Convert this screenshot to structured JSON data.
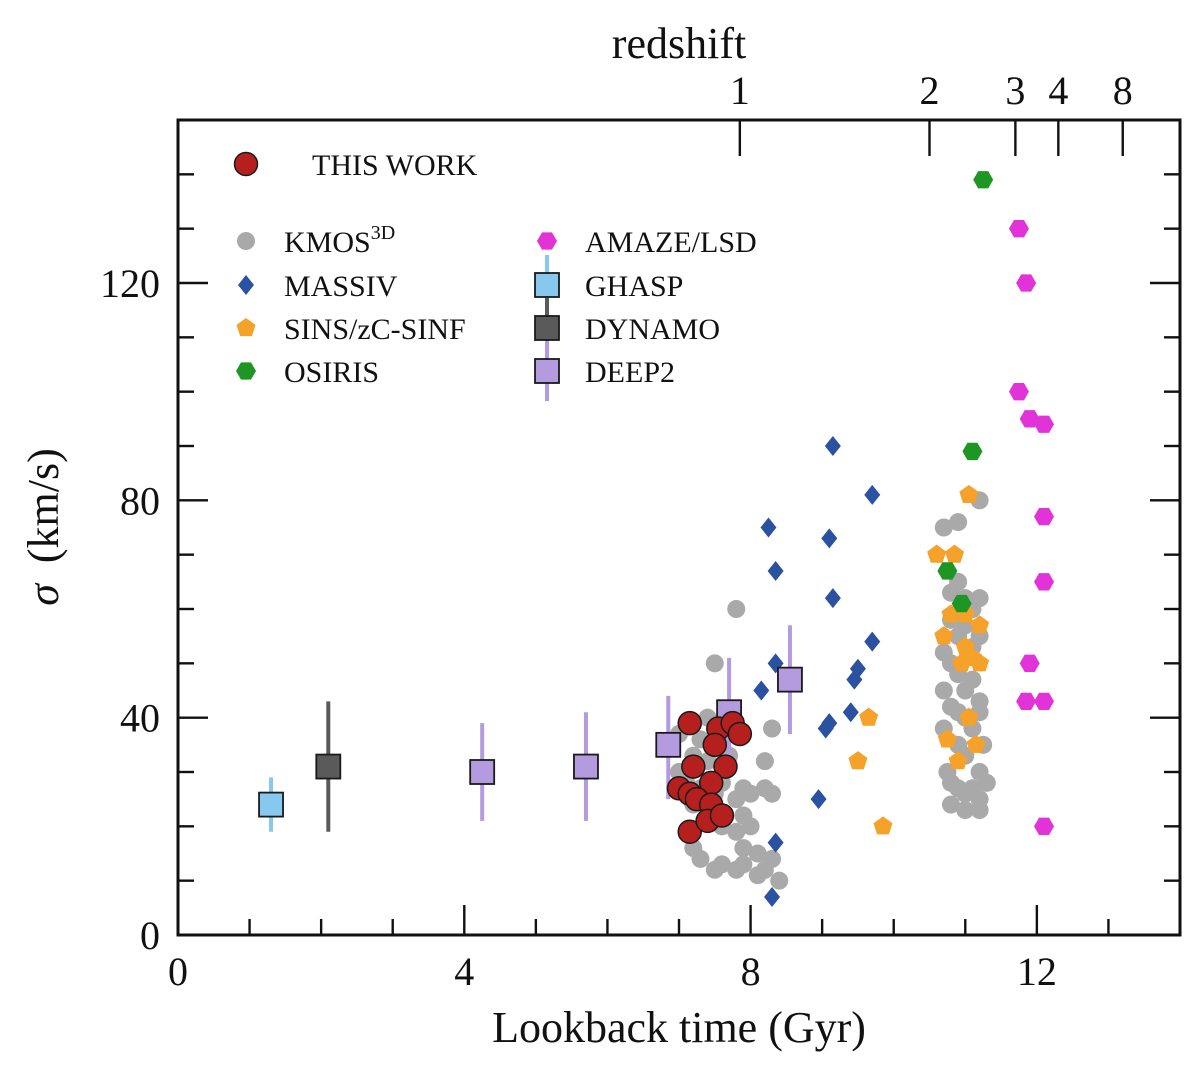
{
  "chart_data": {
    "type": "scatter",
    "xlabel": "Lookback time (Gyr)",
    "ylabel_symbol": "σ",
    "ylabel_units": "(km/s)",
    "top_axis_label": "redshift",
    "xlim": [
      0,
      14
    ],
    "ylim": [
      0,
      150
    ],
    "x_ticks": [
      0,
      4,
      8,
      12
    ],
    "x_tick_labels": [
      "0",
      "4",
      "8",
      "12"
    ],
    "x_minor_ticks": [
      1,
      2,
      3,
      5,
      6,
      7,
      9,
      10,
      11,
      13
    ],
    "y_ticks": [
      0,
      40,
      80,
      120
    ],
    "y_tick_labels": [
      "0",
      "40",
      "80",
      "120"
    ],
    "y_minor_ticks": [
      10,
      20,
      30,
      50,
      60,
      70,
      90,
      100,
      110,
      130,
      140
    ],
    "top_ticks": [
      {
        "z": "1",
        "t": 7.85
      },
      {
        "z": "2",
        "t": 10.5
      },
      {
        "z": "3",
        "t": 11.7
      },
      {
        "z": "4",
        "t": 12.3
      },
      {
        "z": "8",
        "t": 13.2
      }
    ],
    "series": [
      {
        "name": "KMOS",
        "name_sup": "3D",
        "color": "#a9a9a9",
        "marker": "circle",
        "points": [
          [
            7.0,
            37
          ],
          [
            7.2,
            33
          ],
          [
            7.3,
            36
          ],
          [
            7.4,
            40
          ],
          [
            7.5,
            38
          ],
          [
            7.6,
            35
          ],
          [
            7.7,
            33
          ],
          [
            7.1,
            28
          ],
          [
            7.3,
            27
          ],
          [
            7.5,
            26
          ],
          [
            7.6,
            28
          ],
          [
            7.8,
            25
          ],
          [
            7.9,
            27
          ],
          [
            8.0,
            26
          ],
          [
            8.2,
            27
          ],
          [
            8.3,
            26
          ],
          [
            7.4,
            22
          ],
          [
            7.6,
            20
          ],
          [
            7.8,
            19
          ],
          [
            8.0,
            20
          ],
          [
            7.2,
            16
          ],
          [
            7.3,
            14
          ],
          [
            7.5,
            12
          ],
          [
            7.6,
            13
          ],
          [
            7.8,
            12
          ],
          [
            7.9,
            13
          ],
          [
            8.1,
            11
          ],
          [
            8.2,
            12
          ],
          [
            8.4,
            10
          ],
          [
            7.9,
            16
          ],
          [
            8.1,
            15
          ],
          [
            8.3,
            14
          ],
          [
            7.0,
            30
          ],
          [
            7.2,
            24
          ],
          [
            7.4,
            32
          ],
          [
            7.9,
            22
          ],
          [
            8.2,
            32
          ],
          [
            8.3,
            38
          ],
          [
            7.5,
            50
          ],
          [
            7.8,
            60
          ],
          [
            10.7,
            75
          ],
          [
            10.9,
            76
          ],
          [
            11.2,
            80
          ],
          [
            10.8,
            63
          ],
          [
            10.9,
            65
          ],
          [
            11.0,
            62
          ],
          [
            11.1,
            60
          ],
          [
            11.2,
            62
          ],
          [
            10.8,
            58
          ],
          [
            10.9,
            55
          ],
          [
            11.0,
            57
          ],
          [
            11.1,
            53
          ],
          [
            11.2,
            55
          ],
          [
            10.8,
            50
          ],
          [
            10.9,
            48
          ],
          [
            11.0,
            45
          ],
          [
            11.1,
            47
          ],
          [
            11.2,
            43
          ],
          [
            10.8,
            42
          ],
          [
            10.9,
            41
          ],
          [
            11.0,
            40
          ],
          [
            11.1,
            38
          ],
          [
            11.2,
            41
          ],
          [
            10.7,
            38
          ],
          [
            10.9,
            35
          ],
          [
            11.0,
            33
          ],
          [
            11.2,
            30
          ],
          [
            10.8,
            28
          ],
          [
            10.9,
            27
          ],
          [
            11.0,
            26
          ],
          [
            11.1,
            27
          ],
          [
            11.2,
            25
          ],
          [
            10.8,
            24
          ],
          [
            11.0,
            23
          ],
          [
            11.2,
            23
          ],
          [
            11.3,
            28
          ],
          [
            10.7,
            45
          ],
          [
            10.7,
            52
          ],
          [
            10.75,
            30
          ],
          [
            11.25,
            35
          ]
        ]
      },
      {
        "name": "MASSIV",
        "color": "#2b52a0",
        "marker": "diamond",
        "points": [
          [
            8.25,
            75
          ],
          [
            8.35,
            67
          ],
          [
            9.15,
            90
          ],
          [
            9.1,
            73
          ],
          [
            9.15,
            62
          ],
          [
            9.7,
            81
          ],
          [
            9.7,
            54
          ],
          [
            9.5,
            49
          ],
          [
            9.45,
            47
          ],
          [
            8.35,
            50
          ],
          [
            8.15,
            45
          ],
          [
            9.1,
            39
          ],
          [
            9.05,
            38
          ],
          [
            9.4,
            41
          ],
          [
            8.95,
            25
          ],
          [
            8.35,
            17
          ],
          [
            8.3,
            7
          ]
        ]
      },
      {
        "name": "SINS/zC-SINF",
        "color": "#f5a12a",
        "marker": "pentagon",
        "points": [
          [
            11.05,
            81
          ],
          [
            10.6,
            70
          ],
          [
            10.85,
            70
          ],
          [
            10.8,
            59
          ],
          [
            11.0,
            59
          ],
          [
            11.2,
            57
          ],
          [
            10.7,
            55
          ],
          [
            11.0,
            53
          ],
          [
            11.1,
            51
          ],
          [
            10.95,
            50
          ],
          [
            11.2,
            50
          ],
          [
            9.65,
            40
          ],
          [
            11.05,
            40
          ],
          [
            10.75,
            36
          ],
          [
            11.15,
            35
          ],
          [
            9.5,
            32
          ],
          [
            10.9,
            32
          ],
          [
            9.85,
            20
          ]
        ]
      },
      {
        "name": "OSIRIS",
        "color": "#1e9623",
        "marker": "hexagon",
        "points": [
          [
            11.25,
            139
          ],
          [
            11.1,
            89
          ],
          [
            10.75,
            67
          ],
          [
            10.95,
            61
          ]
        ]
      },
      {
        "name": "AMAZE/LSD",
        "color": "#e233d8",
        "marker": "hexagon",
        "points": [
          [
            11.75,
            130
          ],
          [
            11.85,
            120
          ],
          [
            11.75,
            100
          ],
          [
            11.9,
            95
          ],
          [
            12.1,
            94
          ],
          [
            12.1,
            77
          ],
          [
            12.1,
            65
          ],
          [
            11.9,
            50
          ],
          [
            11.85,
            43
          ],
          [
            12.1,
            43
          ],
          [
            12.1,
            20
          ]
        ]
      },
      {
        "name": "GHASP",
        "color": "#87c8ef",
        "marker": "square",
        "errbar": true,
        "points": [
          [
            1.3,
            24,
            29,
            19
          ]
        ]
      },
      {
        "name": "DYNAMO",
        "color": "#5a5a5a",
        "marker": "square",
        "errbar": true,
        "points": [
          [
            2.1,
            31,
            43,
            19
          ]
        ]
      },
      {
        "name": "DEEP2",
        "color": "#b49ade",
        "marker": "square",
        "errbar": true,
        "points": [
          [
            4.25,
            30,
            39,
            21
          ],
          [
            5.7,
            31,
            41,
            21
          ],
          [
            6.85,
            35,
            44,
            25
          ],
          [
            7.7,
            41,
            51,
            30
          ],
          [
            8.55,
            47,
            57,
            37
          ]
        ]
      },
      {
        "name": "THIS WORK",
        "color": "#b5201e",
        "marker": "circle-big",
        "points": [
          [
            7.15,
            39
          ],
          [
            7.55,
            38
          ],
          [
            7.75,
            39
          ],
          [
            7.85,
            37
          ],
          [
            7.2,
            31
          ],
          [
            7.65,
            31
          ],
          [
            7.5,
            35
          ],
          [
            7.0,
            27
          ],
          [
            7.15,
            26
          ],
          [
            7.45,
            28
          ],
          [
            7.25,
            25
          ],
          [
            7.45,
            24
          ],
          [
            7.15,
            19
          ],
          [
            7.4,
            21
          ],
          [
            7.6,
            22
          ]
        ]
      }
    ]
  }
}
